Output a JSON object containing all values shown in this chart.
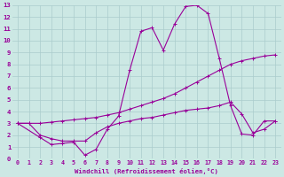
{
  "xlabel": "Windchill (Refroidissement éolien,°C)",
  "bg_color": "#cce8e4",
  "grid_color": "#aacccc",
  "line_color": "#990099",
  "xlim": [
    -0.5,
    23.5
  ],
  "ylim": [
    0,
    13
  ],
  "xticks": [
    0,
    1,
    2,
    3,
    4,
    5,
    6,
    7,
    8,
    9,
    10,
    11,
    12,
    13,
    14,
    15,
    16,
    17,
    18,
    19,
    20,
    21,
    22,
    23
  ],
  "yticks": [
    0,
    1,
    2,
    3,
    4,
    5,
    6,
    7,
    8,
    9,
    10,
    11,
    12,
    13
  ],
  "line1_x": [
    0,
    1,
    2,
    3,
    4,
    5,
    6,
    7,
    8,
    9,
    10,
    11,
    12,
    13,
    14,
    15,
    16,
    17,
    18,
    19,
    20,
    21,
    22,
    23
  ],
  "line1_y": [
    3.0,
    3.0,
    3.0,
    3.1,
    3.2,
    3.3,
    3.4,
    3.5,
    3.7,
    3.9,
    4.2,
    4.5,
    4.8,
    5.1,
    5.5,
    6.0,
    6.5,
    7.0,
    7.5,
    8.0,
    8.3,
    8.5,
    8.7,
    8.8
  ],
  "line2_x": [
    0,
    2,
    3,
    4,
    5,
    6,
    7,
    8,
    9,
    10,
    11,
    12,
    13,
    14,
    15,
    16,
    17,
    18,
    19,
    20,
    21,
    22,
    23
  ],
  "line2_y": [
    3.0,
    1.8,
    1.2,
    1.3,
    1.4,
    0.3,
    0.8,
    2.5,
    3.6,
    7.5,
    10.8,
    11.1,
    9.2,
    11.4,
    12.9,
    13.0,
    12.3,
    8.5,
    4.5,
    2.1,
    2.0,
    3.2,
    3.2
  ],
  "line3_x": [
    0,
    1,
    2,
    3,
    4,
    5,
    6,
    7,
    8,
    9,
    10,
    11,
    12,
    13,
    14,
    15,
    16,
    17,
    18,
    19,
    20,
    21,
    22,
    23
  ],
  "line3_y": [
    3.0,
    3.0,
    2.0,
    1.7,
    1.5,
    1.5,
    1.5,
    2.2,
    2.7,
    3.0,
    3.2,
    3.4,
    3.5,
    3.7,
    3.9,
    4.1,
    4.2,
    4.3,
    4.5,
    4.8,
    3.8,
    2.2,
    2.5,
    3.2
  ]
}
